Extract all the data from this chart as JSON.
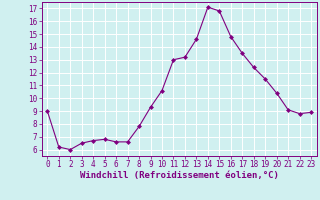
{
  "x": [
    0,
    1,
    2,
    3,
    4,
    5,
    6,
    7,
    8,
    9,
    10,
    11,
    12,
    13,
    14,
    15,
    16,
    17,
    18,
    19,
    20,
    21,
    22,
    23
  ],
  "y": [
    9,
    6.2,
    6.0,
    6.5,
    6.7,
    6.8,
    6.6,
    6.6,
    7.8,
    9.3,
    10.6,
    13.0,
    13.2,
    14.6,
    17.1,
    16.8,
    14.8,
    13.5,
    12.4,
    11.5,
    10.4,
    9.1,
    8.8,
    8.9
  ],
  "line_color": "#800080",
  "marker": "D",
  "marker_size": 2,
  "bg_color": "#d0f0f0",
  "grid_color": "#ffffff",
  "xlabel": "Windchill (Refroidissement éolien,°C)",
  "xlabel_color": "#800080",
  "ylim": [
    5.5,
    17.5
  ],
  "xlim": [
    -0.5,
    23.5
  ],
  "yticks": [
    6,
    7,
    8,
    9,
    10,
    11,
    12,
    13,
    14,
    15,
    16,
    17
  ],
  "xticks": [
    0,
    1,
    2,
    3,
    4,
    5,
    6,
    7,
    8,
    9,
    10,
    11,
    12,
    13,
    14,
    15,
    16,
    17,
    18,
    19,
    20,
    21,
    22,
    23
  ],
  "tick_color": "#800080",
  "tick_fontsize": 5.5,
  "xlabel_fontsize": 6.5,
  "linewidth": 0.8
}
